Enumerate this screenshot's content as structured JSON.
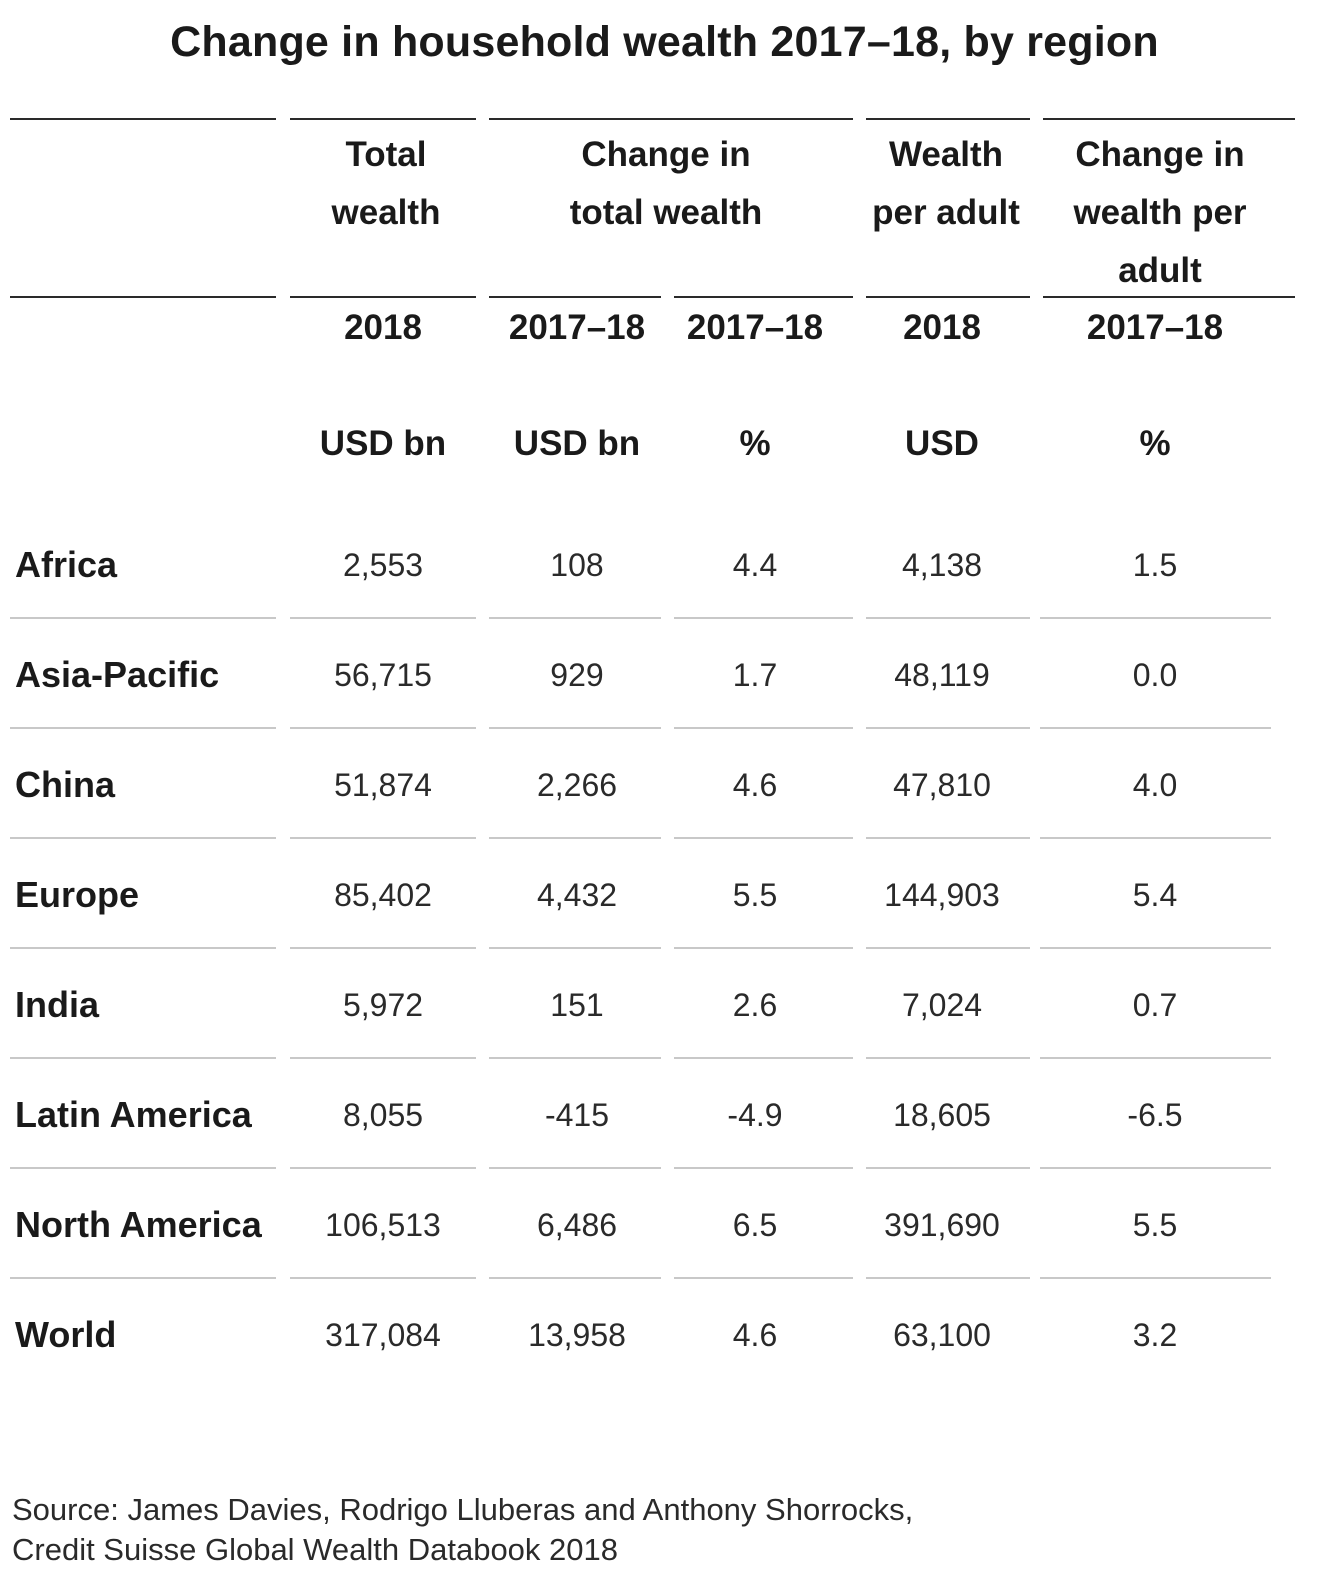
{
  "title": "Change in household wealth 2017–18, by region",
  "columns": [
    {
      "header": "Total wealth",
      "year": "2018",
      "unit": "USD bn"
    },
    {
      "header": "Change in total wealth",
      "year": "2017–18",
      "unit": "USD bn"
    },
    {
      "header": "",
      "year": "2017–18",
      "unit": "%"
    },
    {
      "header": "Wealth per adult",
      "year": "2018",
      "unit": "USD"
    },
    {
      "header": "Change in wealth per adult",
      "year": "2017–18",
      "unit": "%"
    }
  ],
  "rows": [
    {
      "region": "Africa",
      "values": [
        "2,553",
        "108",
        "4.4",
        "4,138",
        "1.5"
      ]
    },
    {
      "region": "Asia-Pacific",
      "values": [
        "56,715",
        "929",
        "1.7",
        "48,119",
        "0.0"
      ]
    },
    {
      "region": "China",
      "values": [
        "51,874",
        "2,266",
        "4.6",
        "47,810",
        "4.0"
      ]
    },
    {
      "region": "Europe",
      "values": [
        "85,402",
        "4,432",
        "5.5",
        "144,903",
        "5.4"
      ]
    },
    {
      "region": "India",
      "values": [
        "5,972",
        "151",
        "2.6",
        "7,024",
        "0.7"
      ]
    },
    {
      "region": "Latin America",
      "values": [
        "8,055",
        "-415",
        "-4.9",
        "18,605",
        "-6.5"
      ]
    },
    {
      "region": "North America",
      "values": [
        "106,513",
        "6,486",
        "6.5",
        "391,690",
        "5.5"
      ]
    },
    {
      "region": "World",
      "values": [
        "317,084",
        "13,958",
        "4.6",
        "63,100",
        "3.2"
      ]
    }
  ],
  "source_line1": "Source: James Davies, Rodrigo Lluberas and Anthony Shorrocks,",
  "source_line2": "Credit Suisse Global Wealth Databook 2018"
}
